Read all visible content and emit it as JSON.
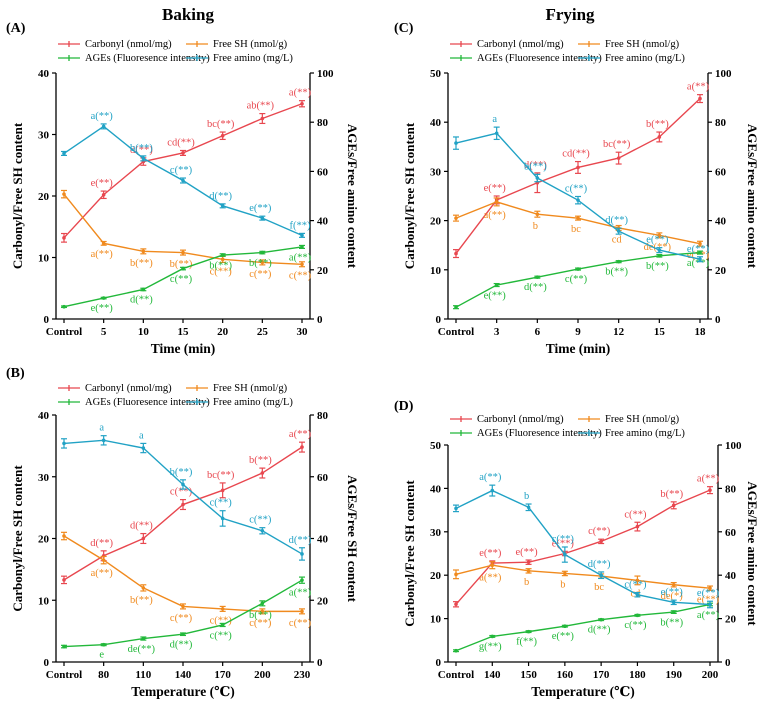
{
  "group_titles": {
    "left": "Baking",
    "right": "Frying"
  },
  "colors": {
    "carbonyl": "#e8474f",
    "free_sh": "#f08a1e",
    "ages": "#22b83a",
    "free_amino": "#21a2c5"
  },
  "chart_data": [
    {
      "panel": "(A)",
      "type": "line",
      "categories": [
        "Control",
        "5",
        "10",
        "15",
        "20",
        "25",
        "30"
      ],
      "xlabel": "Time (min)",
      "ylabel_left": "Carbonyl/Free SH content",
      "ylabel_right": "AGEs/Free amino content",
      "ylim_left": [
        0,
        40
      ],
      "ylim_right": [
        0,
        100
      ],
      "yticks_left": [
        "0",
        "10",
        "20",
        "30",
        "40"
      ],
      "yticks_right": [
        "0",
        "20",
        "40",
        "60",
        "80",
        "100"
      ],
      "legend": [
        "Carbonyl (nmol/mg)",
        "Free SH (nmol/g)",
        "AGEs (Fluoresence intensity)",
        "Free amino (mg/L)"
      ],
      "series": [
        {
          "name": "Carbonyl (nmol/mg)",
          "color": "#e8474f",
          "axis": "left",
          "values": [
            13.2,
            20.2,
            25.6,
            27.0,
            29.8,
            32.6,
            35.0
          ],
          "errors": [
            0.7,
            0.6,
            0.6,
            0.4,
            0.6,
            0.8,
            0.5
          ],
          "labels": [
            "",
            "e(**)",
            "d(**)",
            "cd(**)",
            "bc(**)",
            "ab(**)",
            "a(**)"
          ]
        },
        {
          "name": "Free SH (nmol/g)",
          "color": "#f08a1e",
          "axis": "left",
          "values": [
            20.3,
            12.3,
            11.0,
            10.8,
            9.7,
            9.2,
            8.9
          ],
          "errors": [
            0.6,
            0.3,
            0.4,
            0.4,
            0.5,
            0.4,
            0.4
          ],
          "labels": [
            "",
            "a(**)",
            "b(**)",
            "b(**)",
            "c(**)",
            "c(**)",
            "c(**)"
          ]
        },
        {
          "name": "AGEs (Fluoresence intensity)",
          "color": "#22b83a",
          "axis": "right",
          "values": [
            5.0,
            8.5,
            12.0,
            20.5,
            26.0,
            27.0,
            29.3
          ],
          "errors": [
            0.3,
            0.3,
            0.5,
            0.5,
            0.5,
            0.5,
            0.6
          ],
          "labels": [
            "",
            "e(**)",
            "d(**)",
            "c(**)",
            "b(**)",
            "b(**)",
            "a(**)"
          ]
        },
        {
          "name": "Free amino (mg/L)",
          "color": "#21a2c5",
          "axis": "right",
          "values": [
            67.3,
            78.3,
            65.3,
            56.3,
            46.0,
            41.0,
            34.0
          ],
          "errors": [
            0.8,
            1.0,
            1.0,
            1.0,
            0.8,
            0.8,
            0.8
          ],
          "labels": [
            "",
            "a(**)",
            "b(**)",
            "c(**)",
            "d(**)",
            "e(**)",
            "f(**)"
          ]
        }
      ]
    },
    {
      "panel": "(C)",
      "type": "line",
      "categories": [
        "Control",
        "3",
        "6",
        "9",
        "12",
        "15",
        "18"
      ],
      "xlabel": "Time (min)",
      "ylabel_left": "Carbonyl/Free SH content",
      "ylabel_right": "AGEs/Free amino content",
      "ylim_left": [
        0,
        50
      ],
      "ylim_right": [
        0,
        100
      ],
      "yticks_left": [
        "0",
        "10",
        "20",
        "30",
        "40",
        "50"
      ],
      "yticks_right": [
        "0",
        "20",
        "40",
        "60",
        "80",
        "100"
      ],
      "legend": [
        "Carbonyl (nmol/mg)",
        "Free SH (nmol/g)",
        "AGEs (Fluoresence intensity)",
        "Free amino (mg/L)"
      ],
      "series": [
        {
          "name": "Carbonyl (nmol/mg)",
          "color": "#e8474f",
          "axis": "left",
          "values": [
            13.3,
            24.2,
            27.7,
            30.8,
            32.7,
            37.0,
            44.8
          ],
          "errors": [
            0.8,
            0.8,
            2.0,
            1.2,
            1.2,
            1.0,
            0.8
          ],
          "labels": [
            "",
            "e(**)",
            "d(**)",
            "cd(**)",
            "bc(**)",
            "b(**)",
            "a(**)"
          ]
        },
        {
          "name": "Free SH (nmol/g)",
          "color": "#f08a1e",
          "axis": "left",
          "values": [
            20.5,
            23.8,
            21.3,
            20.5,
            18.5,
            17.0,
            15.3
          ],
          "errors": [
            0.6,
            0.8,
            0.6,
            0.4,
            0.5,
            0.5,
            0.5
          ],
          "labels": [
            "",
            "a(**)",
            "b",
            "bc",
            "cd",
            "de(**)",
            "e(**)"
          ]
        },
        {
          "name": "AGEs (Fluoresence intensity)",
          "color": "#22b83a",
          "axis": "right",
          "values": [
            4.8,
            13.8,
            17.0,
            20.3,
            23.3,
            25.7,
            27.0
          ],
          "errors": [
            0.6,
            0.6,
            0.4,
            0.4,
            0.4,
            0.5,
            0.6
          ],
          "labels": [
            "",
            "e(**)",
            "d(**)",
            "c(**)",
            "b(**)",
            "b(**)",
            "a(**)"
          ]
        },
        {
          "name": "Free amino (mg/L)",
          "color": "#21a2c5",
          "axis": "right",
          "values": [
            71.5,
            75.5,
            57.3,
            48.3,
            35.7,
            28.0,
            24.3
          ],
          "errors": [
            2.5,
            2.5,
            1.5,
            1.5,
            1.2,
            1.0,
            1.0
          ],
          "labels": [
            "",
            "a",
            "b(**)",
            "c(**)",
            "d(**)",
            "e(**)",
            "e(**)"
          ]
        }
      ]
    },
    {
      "panel": "(B)",
      "type": "line",
      "categories": [
        "Control",
        "80",
        "110",
        "140",
        "170",
        "200",
        "230"
      ],
      "xlabel": "Temperature (℃)",
      "ylabel_left": "Carbonyl/Free SH content",
      "ylabel_right": "AGEs/Free SH content",
      "ylim_left": [
        0,
        40
      ],
      "ylim_right": [
        0,
        80
      ],
      "yticks_left": [
        "0",
        "10",
        "20",
        "30",
        "40"
      ],
      "yticks_right": [
        "0",
        "20",
        "40",
        "60",
        "80"
      ],
      "legend": [
        "Carbonyl (nmol/mg)",
        "Free SH (nmol/g)",
        "AGEs (Fluoresence intensity)",
        "Free amino (mg/L)"
      ],
      "series": [
        {
          "name": "Carbonyl (nmol/mg)",
          "color": "#e8474f",
          "axis": "left",
          "values": [
            13.3,
            17.2,
            20.0,
            25.5,
            27.8,
            30.6,
            34.8
          ],
          "errors": [
            0.6,
            0.8,
            0.8,
            0.8,
            1.2,
            0.8,
            0.8
          ],
          "labels": [
            "",
            "d(**)",
            "d(**)",
            "c(**)",
            "bc(**)",
            "b(**)",
            "a(**)"
          ]
        },
        {
          "name": "Free SH (nmol/g)",
          "color": "#f08a1e",
          "axis": "left",
          "values": [
            20.4,
            16.5,
            12.0,
            9.0,
            8.6,
            8.2,
            8.2
          ],
          "errors": [
            0.6,
            0.6,
            0.5,
            0.4,
            0.4,
            0.4,
            0.4
          ],
          "labels": [
            "",
            "a(**)",
            "b(**)",
            "c(**)",
            "c(**)",
            "c(**)",
            "c(**)"
          ]
        },
        {
          "name": "AGEs (Fluoresence intensity)",
          "color": "#22b83a",
          "axis": "right",
          "values": [
            5.0,
            5.6,
            7.6,
            9.0,
            12.0,
            19.0,
            26.5
          ],
          "errors": [
            0.4,
            0.3,
            0.5,
            0.4,
            0.5,
            0.8,
            1.0
          ],
          "labels": [
            "",
            "e",
            "de(**)",
            "d(**)",
            "c(**)",
            "b(**)",
            "a(**)"
          ]
        },
        {
          "name": "Free amino (mg/L)",
          "color": "#21a2c5",
          "axis": "right",
          "values": [
            70.8,
            71.8,
            69.3,
            57.5,
            46.5,
            42.5,
            35.0
          ],
          "errors": [
            1.5,
            1.5,
            1.5,
            1.5,
            2.5,
            1.0,
            2.0
          ],
          "labels": [
            "",
            "a",
            "a",
            "b(**)",
            "c(**)",
            "c(**)",
            "d(**)"
          ]
        }
      ]
    },
    {
      "panel": "(D)",
      "type": "line",
      "categories": [
        "Control",
        "140",
        "150",
        "160",
        "170",
        "180",
        "190",
        "200"
      ],
      "xlabel": "Temperature (℃)",
      "ylabel_left": "Carbonyl/Free SH content",
      "ylabel_right": "AGEs/Free amino content",
      "ylim_left": [
        0,
        50
      ],
      "ylim_right": [
        0,
        100
      ],
      "yticks_left": [
        "0",
        "10",
        "20",
        "30",
        "40",
        "50"
      ],
      "yticks_right": [
        "0",
        "20",
        "40",
        "60",
        "80",
        "100"
      ],
      "legend": [
        "Carbonyl (nmol/mg)",
        "Free SH (nmol/g)",
        "AGEs (Fluoresence intensity)",
        "Free amino (mg/L)"
      ],
      "series": [
        {
          "name": "Carbonyl (nmol/mg)",
          "color": "#e8474f",
          "axis": "left",
          "values": [
            13.3,
            22.8,
            23.0,
            25.0,
            27.8,
            31.2,
            36.1,
            39.6
          ],
          "errors": [
            0.6,
            0.5,
            0.5,
            0.5,
            0.5,
            1.0,
            0.8,
            0.8
          ],
          "labels": [
            "",
            "e(**)",
            "e(**)",
            "e(**)",
            "c(**)",
            "c(**)",
            "b(**)",
            "a(**)"
          ]
        },
        {
          "name": "Free SH (nmol/g)",
          "color": "#f08a1e",
          "axis": "left",
          "values": [
            20.2,
            22.3,
            21.0,
            20.4,
            19.8,
            18.8,
            17.8,
            17.0
          ],
          "errors": [
            1.0,
            0.8,
            0.5,
            0.5,
            0.5,
            1.0,
            0.5,
            0.5
          ],
          "labels": [
            "",
            "a(**)",
            "b",
            "b",
            "bc",
            "cd",
            "de(*)",
            "e(**)"
          ]
        },
        {
          "name": "AGEs (Fluoresence intensity)",
          "color": "#22b83a",
          "axis": "right",
          "values": [
            5.2,
            11.8,
            14.0,
            16.5,
            19.5,
            21.5,
            23.0,
            26.5
          ],
          "errors": [
            0.4,
            0.4,
            0.4,
            0.4,
            0.4,
            0.4,
            0.6,
            0.6
          ],
          "labels": [
            "",
            "g(**)",
            "f(**)",
            "e(**)",
            "d(**)",
            "c(**)",
            "b(**)",
            "a(**)"
          ]
        },
        {
          "name": "Free amino (mg/L)",
          "color": "#21a2c5",
          "axis": "right",
          "values": [
            70.8,
            79.0,
            71.3,
            49.5,
            40.0,
            31.0,
            27.5,
            26.5
          ],
          "errors": [
            1.5,
            2.5,
            1.5,
            3.5,
            1.5,
            1.0,
            1.0,
            1.5
          ],
          "labels": [
            "",
            "a(**)",
            "b",
            "c(**)",
            "d(**)",
            "c(**)",
            "e(**)",
            "e(**)"
          ]
        }
      ]
    }
  ]
}
